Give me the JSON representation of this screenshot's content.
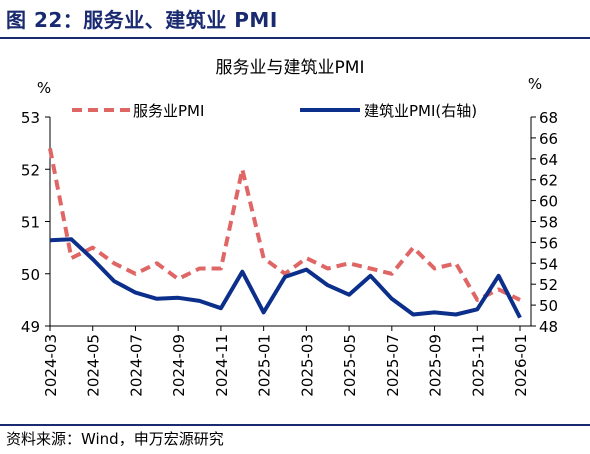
{
  "figure_title": "图 22：服务业、建筑业 PMI",
  "source": "资料来源：Wind，申万宏源研究",
  "colors": {
    "services": "#e06666",
    "construction": "#0b2f8a",
    "title_blue": "#1a2a70"
  },
  "chart_data": {
    "type": "line",
    "title": "服务业与建筑业PMI",
    "left_unit": "%",
    "right_unit": "%",
    "legend": [
      "服务业PMI",
      "建筑业PMI(右轴)"
    ],
    "left_axis": {
      "min": 49,
      "max": 53,
      "ticks": [
        "49",
        "50",
        "51",
        "52",
        "53"
      ]
    },
    "right_axis": {
      "min": 48,
      "max": 68,
      "ticks": [
        "48",
        "50",
        "52",
        "54",
        "56",
        "58",
        "60",
        "62",
        "64",
        "66",
        "68"
      ]
    },
    "x_tick_labels": [
      "2024-03",
      "2024-05",
      "2024-07",
      "2024-09",
      "2024-11",
      "2025-01",
      "2025-03",
      "2025-05",
      "2025-07",
      "2025-09",
      "2025-11",
      "2026-01"
    ],
    "x": [
      "2024-03",
      "2024-04",
      "2024-05",
      "2024-06",
      "2024-07",
      "2024-08",
      "2024-09",
      "2024-10",
      "2024-11",
      "2024-12",
      "2025-01",
      "2025-02",
      "2025-03",
      "2025-04",
      "2025-05",
      "2025-06",
      "2025-07",
      "2025-08",
      "2025-09",
      "2025-10",
      "2025-11",
      "2025-12",
      "2026-01"
    ],
    "series": [
      {
        "name": "服务业PMI",
        "axis": "left",
        "style": "dashed",
        "values": [
          52.4,
          50.3,
          50.5,
          50.2,
          50.0,
          50.2,
          49.9,
          50.1,
          50.1,
          52.0,
          50.3,
          50.0,
          50.3,
          50.1,
          50.2,
          50.1,
          50.0,
          50.5,
          50.1,
          50.2,
          49.5,
          49.7,
          49.5
        ]
      },
      {
        "name": "建筑业PMI(右轴)",
        "axis": "right",
        "style": "solid",
        "values": [
          56.2,
          56.3,
          54.4,
          52.3,
          51.2,
          50.6,
          50.7,
          50.4,
          49.7,
          53.2,
          49.3,
          52.7,
          53.4,
          51.9,
          51.0,
          52.8,
          50.6,
          49.1,
          49.3,
          49.1,
          49.6,
          52.8,
          48.8
        ]
      }
    ],
    "grid": false,
    "legend_position": "top"
  }
}
